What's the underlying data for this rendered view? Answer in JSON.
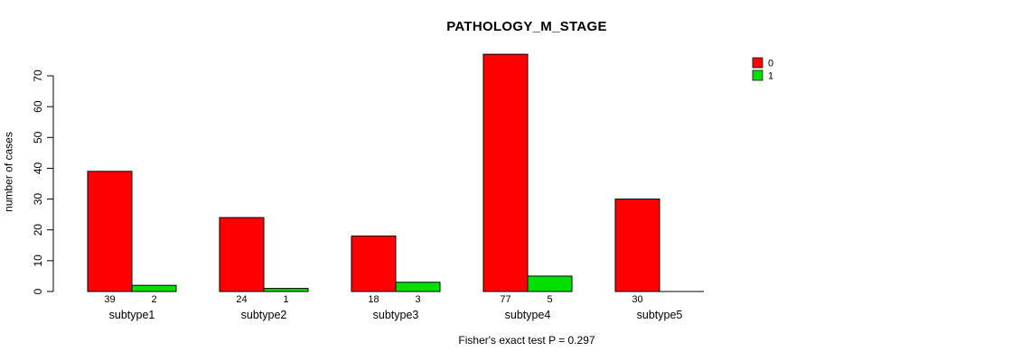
{
  "figure": {
    "title": "PATHOLOGY_M_STAGE",
    "y_axis_label": "number of cases",
    "footer_annotation": "Fisher's exact test P = 0.297"
  },
  "legend": {
    "position": "top-right",
    "items": [
      {
        "label": "0",
        "color": "#FF0000"
      },
      {
        "label": "1",
        "color": "#00E000"
      }
    ]
  },
  "chart_data": {
    "type": "bar",
    "title": "PATHOLOGY_M_STAGE",
    "categories": [
      "subtype1",
      "subtype2",
      "subtype3",
      "subtype4",
      "subtype5"
    ],
    "series": [
      {
        "name": "0",
        "color": "#FF0000",
        "values": [
          39,
          24,
          18,
          77,
          30
        ]
      },
      {
        "name": "1",
        "color": "#00E000",
        "values": [
          2,
          1,
          3,
          5,
          0
        ]
      }
    ],
    "bar_value_labels": [
      [
        "39",
        "2"
      ],
      [
        "24",
        "1"
      ],
      [
        "18",
        "3"
      ],
      [
        "77",
        "5"
      ],
      [
        "30",
        ""
      ]
    ],
    "xlabel": "",
    "ylabel": "number of cases",
    "ylim": [
      0,
      70
    ],
    "yticks": [
      0,
      10,
      20,
      30,
      40,
      50,
      60,
      70
    ],
    "grid": false,
    "legend_position": "top-right",
    "annotation": "Fisher's exact test P = 0.297"
  }
}
